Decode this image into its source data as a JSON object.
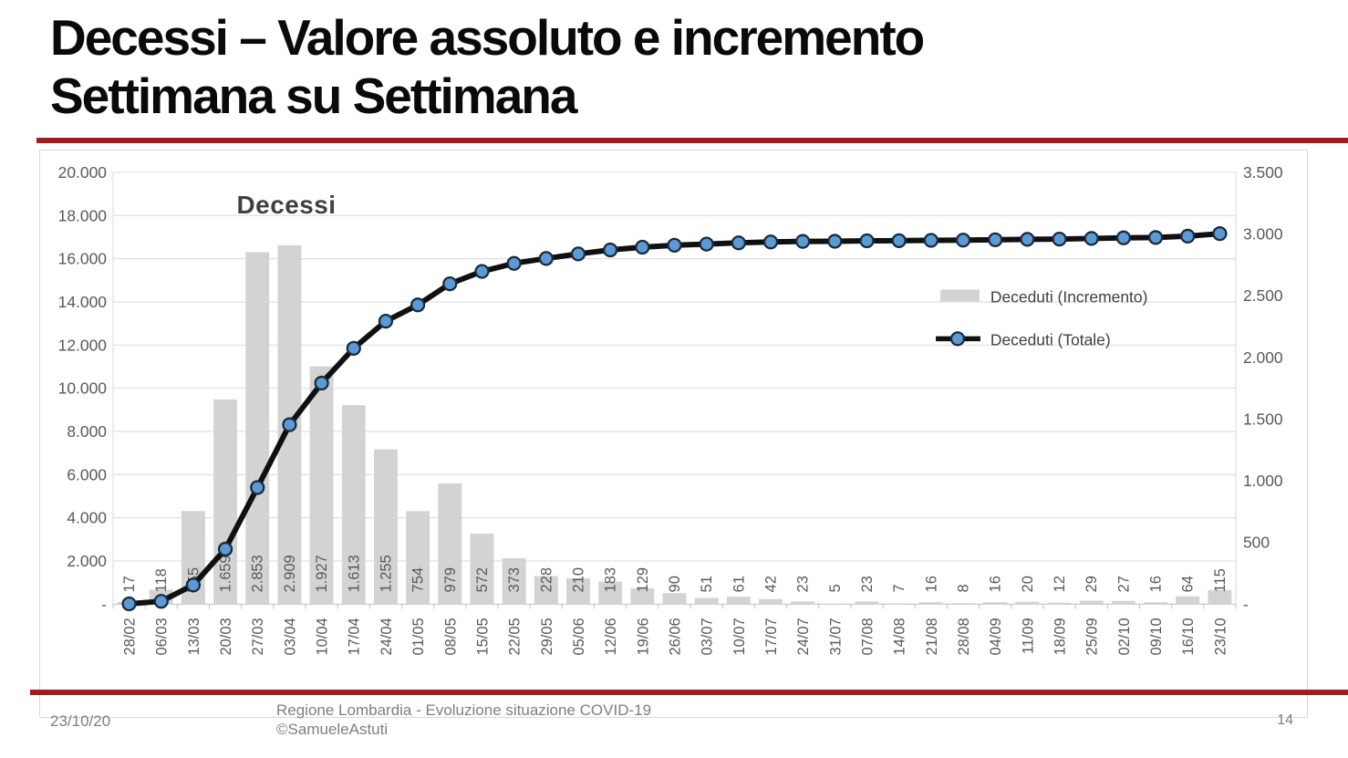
{
  "slide": {
    "title_line1": "Decessi – Valore assoluto e incremento",
    "title_line2": "Settimana su Settimana",
    "accent_color": "#a11c1c",
    "footer": {
      "date": "23/10/20",
      "credit_line1": "Regione Lombardia - Evoluzione situazione COVID-19",
      "credit_line2": "©SamueleAstuti",
      "page_number": "14"
    }
  },
  "chart_data": {
    "type": "combo",
    "title": "Decessi",
    "grid": true,
    "legend": {
      "position": "right"
    },
    "categories": [
      "28/02",
      "06/03",
      "13/03",
      "20/03",
      "27/03",
      "03/04",
      "10/04",
      "17/04",
      "24/04",
      "01/05",
      "08/05",
      "15/05",
      "22/05",
      "29/05",
      "05/06",
      "12/06",
      "19/06",
      "26/06",
      "03/07",
      "10/07",
      "17/07",
      "24/07",
      "31/07",
      "07/08",
      "14/08",
      "21/08",
      "28/08",
      "04/09",
      "11/09",
      "18/09",
      "25/09",
      "02/10",
      "09/10",
      "16/10",
      "23/10"
    ],
    "series": [
      {
        "name": "Deceduti (Incremento)",
        "type": "bar",
        "axis": "right",
        "color": "#d3d3d3",
        "values": [
          17,
          118,
          755,
          1659,
          2853,
          2909,
          1927,
          1613,
          1255,
          754,
          979,
          572,
          373,
          228,
          210,
          183,
          129,
          90,
          51,
          61,
          42,
          23,
          5,
          23,
          7,
          16,
          8,
          16,
          20,
          12,
          29,
          27,
          16,
          64,
          115
        ],
        "data_labels": [
          "17",
          "118",
          "755",
          "1.659",
          "2.853",
          "2.909",
          "1.927",
          "1.613",
          "1.255",
          "754",
          "979",
          "572",
          "373",
          "228",
          "210",
          "183",
          "129",
          "90",
          "51",
          "61",
          "42",
          "23",
          "5",
          "23",
          "7",
          "16",
          "8",
          "16",
          "20",
          "12",
          "29",
          "27",
          "16",
          "64",
          "115"
        ]
      },
      {
        "name": "Deceduti (Totale)",
        "type": "line",
        "axis": "left",
        "color": "#101010",
        "marker_color": "#5b9bd5",
        "marker_edge_color": "#1b2a3b",
        "values": [
          17,
          135,
          890,
          2549,
          5402,
          8311,
          10238,
          11851,
          13106,
          13860,
          14839,
          15411,
          15784,
          16012,
          16222,
          16405,
          16534,
          16624,
          16675,
          16736,
          16778,
          16801,
          16806,
          16829,
          16836,
          16852,
          16860,
          16876,
          16896,
          16908,
          16937,
          16964,
          16980,
          17044,
          17159
        ]
      }
    ],
    "axes": {
      "left": {
        "min": 0,
        "max": 20000,
        "step": 2000,
        "tick_labels": [
          "20.000",
          "18.000",
          "16.000",
          "14.000",
          "12.000",
          "10.000",
          "8.000",
          "6.000",
          "4.000",
          "2.000",
          "-"
        ]
      },
      "right": {
        "min": 0,
        "max": 3500,
        "step": 500,
        "tick_labels": [
          "3.500",
          "3.000",
          "2.500",
          "2.000",
          "1.500",
          "1.000",
          "500",
          "-"
        ]
      }
    },
    "colors": {
      "gridline": "#d9d9d9",
      "axis_text": "#595959",
      "title_text": "#404040",
      "legend_text": "#404040",
      "tick": "#bfbfbf"
    }
  }
}
